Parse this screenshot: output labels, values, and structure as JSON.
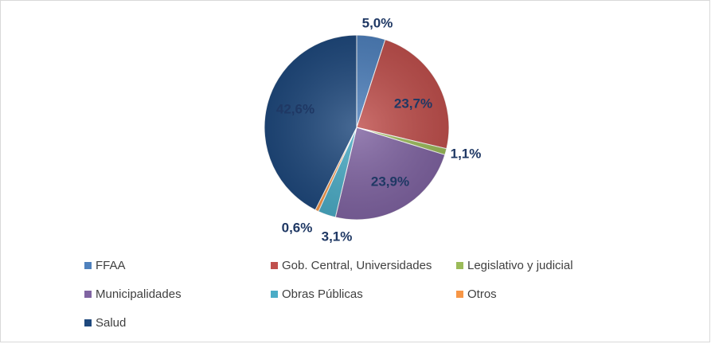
{
  "chart_data": {
    "type": "pie",
    "title": "",
    "categories": [
      "FFAA",
      "Gob. Central, Universidades",
      "Legislativo y judicial",
      "Municipalidades",
      "Obras Públicas",
      "Otros",
      "Salud"
    ],
    "values": [
      5.0,
      23.7,
      1.1,
      23.9,
      3.1,
      0.6,
      42.6
    ],
    "labels": [
      "5,0%",
      "23,7%",
      "1,1%",
      "23,9%",
      "3,1%",
      "0,6%",
      "42,6%"
    ],
    "colors": [
      "#4f81bd",
      "#c0504d",
      "#9bbb59",
      "#8064a2",
      "#4bacc6",
      "#f79646",
      "#1f497d"
    ],
    "legend_position": "bottom",
    "unit": "%"
  }
}
